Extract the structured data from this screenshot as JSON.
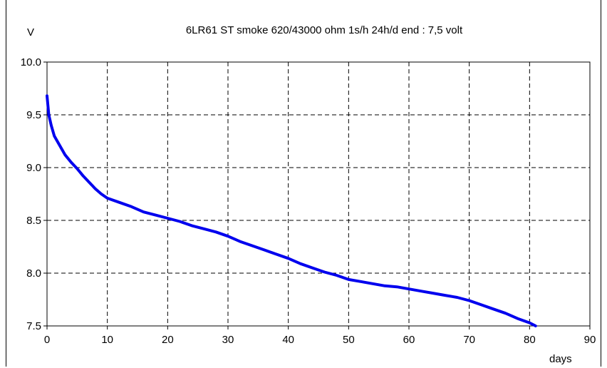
{
  "chart_data": {
    "type": "line",
    "title": "6LR61 ST smoke 620/43000 ohm 1s/h 24h/d  end : 7,5 volt",
    "xlabel": "days",
    "ylabel": "V",
    "xlim": [
      0,
      90
    ],
    "ylim": [
      7.5,
      10.0
    ],
    "x_ticks": [
      "0",
      "10",
      "20",
      "30",
      "40",
      "50",
      "60",
      "70",
      "80",
      "90"
    ],
    "y_ticks": [
      "7.5",
      "8.0",
      "8.5",
      "9.0",
      "9.5",
      "10.0"
    ],
    "grid": true,
    "line_color": "#0000ee",
    "series": [
      {
        "x": [
          0,
          0.3,
          0.7,
          1.2,
          2,
          3,
          4,
          5,
          6,
          7,
          8,
          9,
          10,
          12,
          14,
          16,
          18,
          20,
          22,
          24,
          26,
          28,
          30,
          32,
          34,
          36,
          38,
          40,
          42,
          44,
          46,
          48,
          50,
          52,
          54,
          56,
          58,
          60,
          62,
          64,
          66,
          68,
          70,
          72,
          74,
          76,
          78,
          80,
          81
        ],
        "y": [
          9.68,
          9.5,
          9.4,
          9.3,
          9.22,
          9.12,
          9.05,
          8.99,
          8.92,
          8.86,
          8.8,
          8.75,
          8.71,
          8.67,
          8.63,
          8.58,
          8.55,
          8.52,
          8.49,
          8.45,
          8.42,
          8.39,
          8.35,
          8.3,
          8.26,
          8.22,
          8.18,
          8.14,
          8.09,
          8.05,
          8.01,
          7.98,
          7.94,
          7.92,
          7.9,
          7.88,
          7.87,
          7.85,
          7.83,
          7.81,
          7.79,
          7.77,
          7.74,
          7.7,
          7.66,
          7.62,
          7.57,
          7.53,
          7.5
        ]
      }
    ]
  }
}
